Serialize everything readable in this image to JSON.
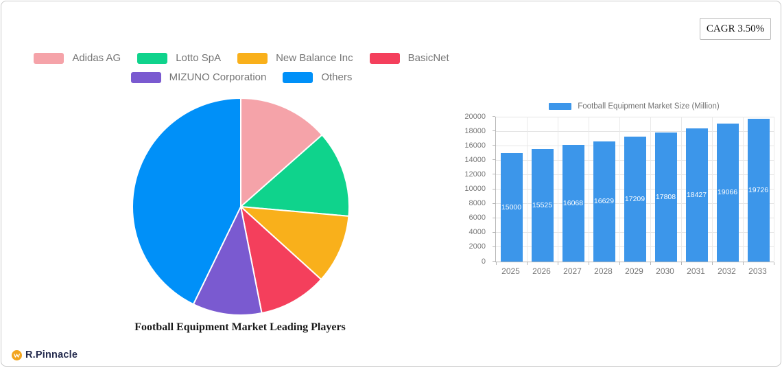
{
  "cagr_badge": {
    "label": "CAGR 3.50%"
  },
  "brand": {
    "name": "R.Pinnacle",
    "icon": "wave-badge-icon",
    "icon_color": "#f2a51f"
  },
  "chart_data": [
    {
      "type": "pie",
      "title": "Football Equipment Market Leading Players",
      "labels": [
        "Adidas AG",
        "Lotto SpA",
        "New Balance Inc",
        "BasicNet",
        "MIZUNO Corporation",
        "Others"
      ],
      "values_percent": [
        13.5,
        12.9,
        10.3,
        10.2,
        10.3,
        42.8
      ],
      "colors": [
        "#f5a3a9",
        "#0fd38c",
        "#f9b01b",
        "#f43f5c",
        "#7a5ad0",
        "#0090f8"
      ],
      "legend_position": "top",
      "legend_rows": [
        4,
        2
      ],
      "start_angle_deg": 0,
      "slice_border_color": "#ffffff"
    },
    {
      "type": "bar",
      "legend_label": "Football Equipment Market Size (Million)",
      "categories": [
        "2025",
        "2026",
        "2027",
        "2028",
        "2029",
        "2030",
        "2031",
        "2032",
        "2033"
      ],
      "values": [
        15000,
        15525,
        16068,
        16629,
        17209,
        17808,
        18427,
        19066,
        19726
      ],
      "bar_color": "#3c96ea",
      "value_label_color": "#ffffff",
      "ylim": [
        0,
        20000
      ],
      "ytick_step": 2000,
      "grid": true,
      "legend_position": "top"
    }
  ]
}
